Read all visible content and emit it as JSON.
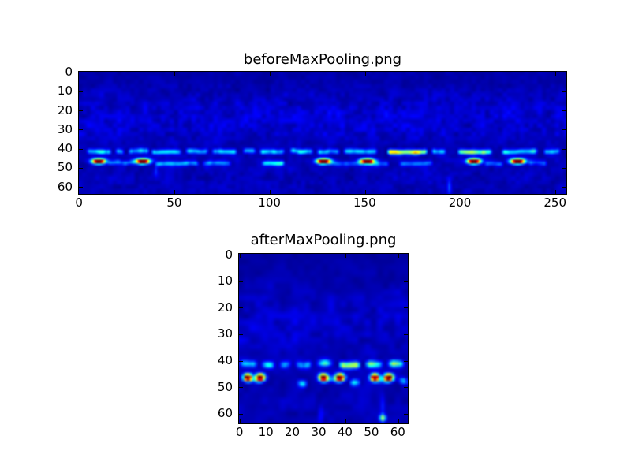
{
  "figure": {
    "background_color": "#ffffff",
    "text_color": "#000000",
    "spine_color": "#000000",
    "heatmap_min_color": "#000080"
  },
  "chart_data": [
    {
      "type": "heatmap",
      "title": "beforeMaxPooling.png",
      "colormap": "jet",
      "grid_cols": 256,
      "grid_rows": 64,
      "xlim": [
        0,
        256
      ],
      "ylim": [
        64,
        0
      ],
      "xticks": [
        0,
        50,
        100,
        150,
        200,
        250
      ],
      "yticks": [
        0,
        10,
        20,
        30,
        40,
        50,
        60
      ],
      "hotspots": [
        {
          "x": 10,
          "y": 46.4,
          "p": 1.25,
          "sx": 2.4,
          "sy": 0.95
        },
        {
          "x": 33,
          "y": 46.4,
          "p": 1.25,
          "sx": 2.5,
          "sy": 0.95
        },
        {
          "x": 128,
          "y": 46.4,
          "p": 1.25,
          "sx": 2.5,
          "sy": 0.95
        },
        {
          "x": 151,
          "y": 46.4,
          "p": 1.25,
          "sx": 2.6,
          "sy": 0.95
        },
        {
          "x": 207,
          "y": 46.4,
          "p": 1.25,
          "sx": 2.4,
          "sy": 0.95
        },
        {
          "x": 230,
          "y": 46.4,
          "p": 1.25,
          "sx": 2.6,
          "sy": 0.95
        }
      ],
      "segments": [
        {
          "x0": 4,
          "x1": 16,
          "y": 41.2,
          "p": 0.32
        },
        {
          "x0": 19,
          "x1": 23,
          "y": 41.3,
          "p": 0.24
        },
        {
          "x0": 26,
          "x1": 36,
          "y": 41.2,
          "p": 0.3
        },
        {
          "x0": 38,
          "x1": 53,
          "y": 41.4,
          "p": 0.3
        },
        {
          "x0": 56,
          "x1": 67,
          "y": 41.2,
          "p": 0.27
        },
        {
          "x0": 70,
          "x1": 82,
          "y": 41.3,
          "p": 0.3
        },
        {
          "x0": 86,
          "x1": 92,
          "y": 41.2,
          "p": 0.25
        },
        {
          "x0": 95,
          "x1": 107,
          "y": 41.3,
          "p": 0.3
        },
        {
          "x0": 111,
          "x1": 122,
          "y": 41.1,
          "p": 0.33
        },
        {
          "x0": 125,
          "x1": 136,
          "y": 41.3,
          "p": 0.3
        },
        {
          "x0": 139,
          "x1": 156,
          "y": 41.2,
          "p": 0.3
        },
        {
          "x0": 162,
          "x1": 182,
          "y": 41.4,
          "p": 0.62
        },
        {
          "x0": 185,
          "x1": 192,
          "y": 41.3,
          "p": 0.28
        },
        {
          "x0": 199,
          "x1": 216,
          "y": 41.5,
          "p": 0.5
        },
        {
          "x0": 222,
          "x1": 240,
          "y": 41.3,
          "p": 0.36
        },
        {
          "x0": 244,
          "x1": 252,
          "y": 41.2,
          "p": 0.3
        },
        {
          "x0": 15,
          "x1": 29,
          "y": 47.0,
          "p": 0.2
        },
        {
          "x0": 40,
          "x1": 62,
          "y": 47.6,
          "p": 0.24
        },
        {
          "x0": 65,
          "x1": 79,
          "y": 47.4,
          "p": 0.2
        },
        {
          "x0": 96,
          "x1": 107,
          "y": 47.4,
          "p": 0.34
        },
        {
          "x0": 131,
          "x1": 148,
          "y": 47.6,
          "p": 0.16
        },
        {
          "x0": 152,
          "x1": 162,
          "y": 47.8,
          "p": 0.15
        },
        {
          "x0": 168,
          "x1": 185,
          "y": 47.5,
          "p": 0.18
        },
        {
          "x0": 213,
          "x1": 222,
          "y": 47.6,
          "p": 0.18
        },
        {
          "x0": 236,
          "x1": 245,
          "y": 47.3,
          "p": 0.16
        }
      ],
      "spots": [
        {
          "x": 194,
          "y": 60,
          "p": 0.16,
          "sx": 0.8,
          "sy": 3.0
        },
        {
          "x": 40,
          "y": 51,
          "p": 0.1,
          "sx": 0.6,
          "sy": 2.5
        }
      ],
      "noise": {
        "base": 0.015,
        "row_profile": [
          [
            0,
            0.05
          ],
          [
            6,
            0.06
          ],
          [
            12,
            0.1
          ],
          [
            20,
            0.13
          ],
          [
            30,
            0.13
          ],
          [
            36,
            0.09
          ],
          [
            40,
            0.06
          ],
          [
            44,
            0.08
          ],
          [
            52,
            0.09
          ],
          [
            58,
            0.09
          ],
          [
            64,
            0.07
          ]
        ]
      }
    },
    {
      "type": "heatmap",
      "title": "afterMaxPooling.png",
      "colormap": "jet",
      "grid_cols": 64,
      "grid_rows": 64,
      "xlim": [
        0,
        64
      ],
      "ylim": [
        64,
        0
      ],
      "xticks": [
        0,
        10,
        20,
        30,
        40,
        50,
        60
      ],
      "yticks": [
        0,
        10,
        20,
        30,
        40,
        50,
        60
      ],
      "hotspots": [
        {
          "x": 2.8,
          "y": 46.2,
          "p": 1.25,
          "sx": 1.1,
          "sy": 0.95
        },
        {
          "x": 7.6,
          "y": 46.2,
          "p": 1.25,
          "sx": 1.15,
          "sy": 0.95
        },
        {
          "x": 31.5,
          "y": 46.2,
          "p": 1.25,
          "sx": 1.15,
          "sy": 0.95
        },
        {
          "x": 37.8,
          "y": 46.2,
          "p": 1.25,
          "sx": 1.15,
          "sy": 0.95
        },
        {
          "x": 51,
          "y": 46.2,
          "p": 1.25,
          "sx": 1.1,
          "sy": 0.95
        },
        {
          "x": 56.3,
          "y": 46.2,
          "p": 1.25,
          "sx": 1.2,
          "sy": 0.95
        }
      ],
      "segments": [
        {
          "x0": 0.5,
          "x1": 6,
          "y": 41.2,
          "p": 0.35
        },
        {
          "x0": 8.5,
          "x1": 12.5,
          "y": 41.3,
          "p": 0.3
        },
        {
          "x0": 15.5,
          "x1": 18.7,
          "y": 41.2,
          "p": 0.25
        },
        {
          "x0": 21.6,
          "x1": 26.5,
          "y": 41.3,
          "p": 0.3
        },
        {
          "x0": 29.5,
          "x1": 34.4,
          "y": 41.1,
          "p": 0.35
        },
        {
          "x0": 38,
          "x1": 45,
          "y": 41.4,
          "p": 0.52
        },
        {
          "x0": 48,
          "x1": 53.5,
          "y": 41.2,
          "p": 0.42
        },
        {
          "x0": 56.5,
          "x1": 61.5,
          "y": 41.2,
          "p": 0.42
        },
        {
          "x0": 3.5,
          "x1": 7,
          "y": 47.2,
          "p": 0.16
        },
        {
          "x0": 22,
          "x1": 25,
          "y": 48.3,
          "p": 0.28
        },
        {
          "x0": 32.5,
          "x1": 37,
          "y": 47.2,
          "p": 0.16
        },
        {
          "x0": 42,
          "x1": 45,
          "y": 48.0,
          "p": 0.32
        },
        {
          "x0": 52,
          "x1": 56,
          "y": 47.2,
          "p": 0.15
        },
        {
          "x0": 60.5,
          "x1": 63,
          "y": 47.5,
          "p": 0.3
        }
      ],
      "spots": [
        {
          "x": 54,
          "y": 61.5,
          "p": 0.5,
          "sx": 0.8,
          "sy": 0.9
        },
        {
          "x": 54,
          "y": 57,
          "p": 0.1,
          "sx": 0.7,
          "sy": 3.0
        },
        {
          "x": 30.5,
          "y": 60,
          "p": 0.1,
          "sx": 0.6,
          "sy": 2.5
        }
      ],
      "noise": {
        "base": 0.015,
        "row_profile": [
          [
            0,
            0.04
          ],
          [
            8,
            0.05
          ],
          [
            14,
            0.09
          ],
          [
            22,
            0.12
          ],
          [
            32,
            0.11
          ],
          [
            38,
            0.07
          ],
          [
            44,
            0.07
          ],
          [
            50,
            0.08
          ],
          [
            58,
            0.08
          ],
          [
            64,
            0.06
          ]
        ]
      }
    }
  ]
}
